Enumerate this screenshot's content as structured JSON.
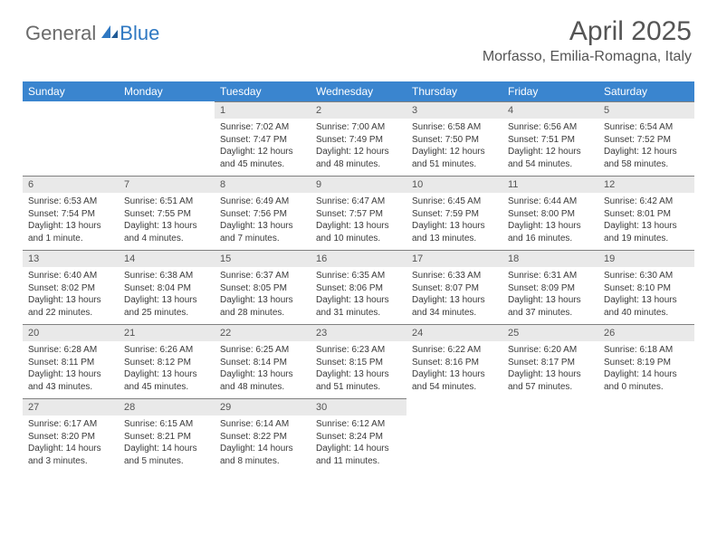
{
  "brand": {
    "general": "General",
    "blue": "Blue"
  },
  "title": "April 2025",
  "location": "Morfasso, Emilia-Romagna, Italy",
  "colors": {
    "header_bg": "#3a85cf",
    "header_text": "#ffffff",
    "daynum_bg": "#e9e9e9",
    "daynum_border": "#808080",
    "text": "#3a3a3a",
    "title_color": "#555555",
    "logo_gray": "#6b6b6b",
    "logo_blue": "#2f78c2"
  },
  "weekdays": [
    "Sunday",
    "Monday",
    "Tuesday",
    "Wednesday",
    "Thursday",
    "Friday",
    "Saturday"
  ],
  "weeks": [
    [
      {
        "n": "",
        "sr": "",
        "ss": "",
        "dl": ""
      },
      {
        "n": "",
        "sr": "",
        "ss": "",
        "dl": ""
      },
      {
        "n": "1",
        "sr": "Sunrise: 7:02 AM",
        "ss": "Sunset: 7:47 PM",
        "dl": "Daylight: 12 hours and 45 minutes."
      },
      {
        "n": "2",
        "sr": "Sunrise: 7:00 AM",
        "ss": "Sunset: 7:49 PM",
        "dl": "Daylight: 12 hours and 48 minutes."
      },
      {
        "n": "3",
        "sr": "Sunrise: 6:58 AM",
        "ss": "Sunset: 7:50 PM",
        "dl": "Daylight: 12 hours and 51 minutes."
      },
      {
        "n": "4",
        "sr": "Sunrise: 6:56 AM",
        "ss": "Sunset: 7:51 PM",
        "dl": "Daylight: 12 hours and 54 minutes."
      },
      {
        "n": "5",
        "sr": "Sunrise: 6:54 AM",
        "ss": "Sunset: 7:52 PM",
        "dl": "Daylight: 12 hours and 58 minutes."
      }
    ],
    [
      {
        "n": "6",
        "sr": "Sunrise: 6:53 AM",
        "ss": "Sunset: 7:54 PM",
        "dl": "Daylight: 13 hours and 1 minute."
      },
      {
        "n": "7",
        "sr": "Sunrise: 6:51 AM",
        "ss": "Sunset: 7:55 PM",
        "dl": "Daylight: 13 hours and 4 minutes."
      },
      {
        "n": "8",
        "sr": "Sunrise: 6:49 AM",
        "ss": "Sunset: 7:56 PM",
        "dl": "Daylight: 13 hours and 7 minutes."
      },
      {
        "n": "9",
        "sr": "Sunrise: 6:47 AM",
        "ss": "Sunset: 7:57 PM",
        "dl": "Daylight: 13 hours and 10 minutes."
      },
      {
        "n": "10",
        "sr": "Sunrise: 6:45 AM",
        "ss": "Sunset: 7:59 PM",
        "dl": "Daylight: 13 hours and 13 minutes."
      },
      {
        "n": "11",
        "sr": "Sunrise: 6:44 AM",
        "ss": "Sunset: 8:00 PM",
        "dl": "Daylight: 13 hours and 16 minutes."
      },
      {
        "n": "12",
        "sr": "Sunrise: 6:42 AM",
        "ss": "Sunset: 8:01 PM",
        "dl": "Daylight: 13 hours and 19 minutes."
      }
    ],
    [
      {
        "n": "13",
        "sr": "Sunrise: 6:40 AM",
        "ss": "Sunset: 8:02 PM",
        "dl": "Daylight: 13 hours and 22 minutes."
      },
      {
        "n": "14",
        "sr": "Sunrise: 6:38 AM",
        "ss": "Sunset: 8:04 PM",
        "dl": "Daylight: 13 hours and 25 minutes."
      },
      {
        "n": "15",
        "sr": "Sunrise: 6:37 AM",
        "ss": "Sunset: 8:05 PM",
        "dl": "Daylight: 13 hours and 28 minutes."
      },
      {
        "n": "16",
        "sr": "Sunrise: 6:35 AM",
        "ss": "Sunset: 8:06 PM",
        "dl": "Daylight: 13 hours and 31 minutes."
      },
      {
        "n": "17",
        "sr": "Sunrise: 6:33 AM",
        "ss": "Sunset: 8:07 PM",
        "dl": "Daylight: 13 hours and 34 minutes."
      },
      {
        "n": "18",
        "sr": "Sunrise: 6:31 AM",
        "ss": "Sunset: 8:09 PM",
        "dl": "Daylight: 13 hours and 37 minutes."
      },
      {
        "n": "19",
        "sr": "Sunrise: 6:30 AM",
        "ss": "Sunset: 8:10 PM",
        "dl": "Daylight: 13 hours and 40 minutes."
      }
    ],
    [
      {
        "n": "20",
        "sr": "Sunrise: 6:28 AM",
        "ss": "Sunset: 8:11 PM",
        "dl": "Daylight: 13 hours and 43 minutes."
      },
      {
        "n": "21",
        "sr": "Sunrise: 6:26 AM",
        "ss": "Sunset: 8:12 PM",
        "dl": "Daylight: 13 hours and 45 minutes."
      },
      {
        "n": "22",
        "sr": "Sunrise: 6:25 AM",
        "ss": "Sunset: 8:14 PM",
        "dl": "Daylight: 13 hours and 48 minutes."
      },
      {
        "n": "23",
        "sr": "Sunrise: 6:23 AM",
        "ss": "Sunset: 8:15 PM",
        "dl": "Daylight: 13 hours and 51 minutes."
      },
      {
        "n": "24",
        "sr": "Sunrise: 6:22 AM",
        "ss": "Sunset: 8:16 PM",
        "dl": "Daylight: 13 hours and 54 minutes."
      },
      {
        "n": "25",
        "sr": "Sunrise: 6:20 AM",
        "ss": "Sunset: 8:17 PM",
        "dl": "Daylight: 13 hours and 57 minutes."
      },
      {
        "n": "26",
        "sr": "Sunrise: 6:18 AM",
        "ss": "Sunset: 8:19 PM",
        "dl": "Daylight: 14 hours and 0 minutes."
      }
    ],
    [
      {
        "n": "27",
        "sr": "Sunrise: 6:17 AM",
        "ss": "Sunset: 8:20 PM",
        "dl": "Daylight: 14 hours and 3 minutes."
      },
      {
        "n": "28",
        "sr": "Sunrise: 6:15 AM",
        "ss": "Sunset: 8:21 PM",
        "dl": "Daylight: 14 hours and 5 minutes."
      },
      {
        "n": "29",
        "sr": "Sunrise: 6:14 AM",
        "ss": "Sunset: 8:22 PM",
        "dl": "Daylight: 14 hours and 8 minutes."
      },
      {
        "n": "30",
        "sr": "Sunrise: 6:12 AM",
        "ss": "Sunset: 8:24 PM",
        "dl": "Daylight: 14 hours and 11 minutes."
      },
      {
        "n": "",
        "sr": "",
        "ss": "",
        "dl": ""
      },
      {
        "n": "",
        "sr": "",
        "ss": "",
        "dl": ""
      },
      {
        "n": "",
        "sr": "",
        "ss": "",
        "dl": ""
      }
    ]
  ]
}
